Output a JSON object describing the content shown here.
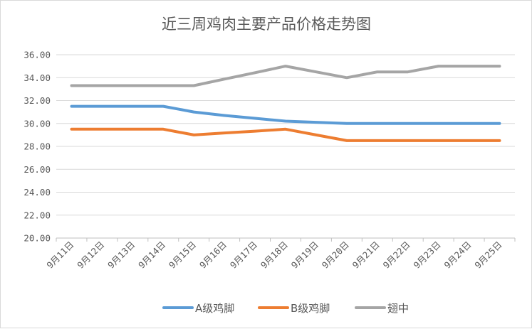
{
  "chart_data": {
    "type": "line",
    "title": "近三周鸡肉主要产品价格走势图",
    "categories": [
      "9月11日",
      "9月12日",
      "9月13日",
      "9月14日",
      "9月15日",
      "9月16日",
      "9月17日",
      "9月18日",
      "9月19日",
      "9月20日",
      "9月21日",
      "9月22日",
      "9月23日",
      "9月24日",
      "9月25日"
    ],
    "y_ticks": [
      "20.00",
      "22.00",
      "24.00",
      "26.00",
      "28.00",
      "30.00",
      "32.00",
      "34.00",
      "36.00"
    ],
    "ylim": [
      20,
      36
    ],
    "grid": true,
    "legend_position": "bottom",
    "series": [
      {
        "name": "A级鸡脚",
        "color": "#5b9bd5",
        "values": [
          31.5,
          31.5,
          31.5,
          31.5,
          31.0,
          30.7,
          30.45,
          30.2,
          30.1,
          30.0,
          30.0,
          30.0,
          30.0,
          30.0,
          30.0
        ]
      },
      {
        "name": "B级鸡脚",
        "color": "#ed7d31",
        "values": [
          29.5,
          29.5,
          29.5,
          29.5,
          29.0,
          29.17,
          29.33,
          29.5,
          29.0,
          28.5,
          28.5,
          28.5,
          28.5,
          28.5,
          28.5
        ]
      },
      {
        "name": "翅中",
        "color": "#a5a5a5",
        "values": [
          33.3,
          33.3,
          33.3,
          33.3,
          33.3,
          33.87,
          34.43,
          35.0,
          34.5,
          34.0,
          34.5,
          34.5,
          35.0,
          35.0,
          35.0
        ]
      }
    ]
  }
}
